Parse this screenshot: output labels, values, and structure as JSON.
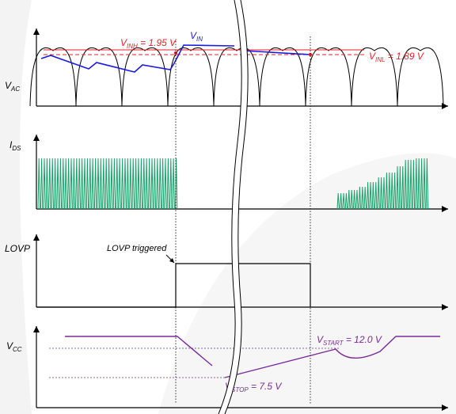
{
  "labels": {
    "vac": "V",
    "vac_sub": "AC",
    "ids": "I",
    "ids_sub": "DS",
    "lovp": "LOVP",
    "vcc": "V",
    "vcc_sub": "CC",
    "vinh": "V",
    "vinh_sub": "INH",
    "vinh_value": " = 1.95 V",
    "vin": "V",
    "vin_sub": "IN",
    "vinl": "V",
    "vinl_sub": "INL",
    "vinl_value": " = 1.89 V",
    "lovp_triggered": "LOVP triggered",
    "vstart": "V",
    "vstart_sub": "START",
    "vstart_value": " = 12.0 V",
    "vstop": "V",
    "vstop_sub": "STOP",
    "vstop_value": " = 7.5 V"
  },
  "colors": {
    "threshold": "#e8202a",
    "vin": "#1a1adf",
    "ids": "#16a36a",
    "vcc": "#7a2a9a"
  }
}
